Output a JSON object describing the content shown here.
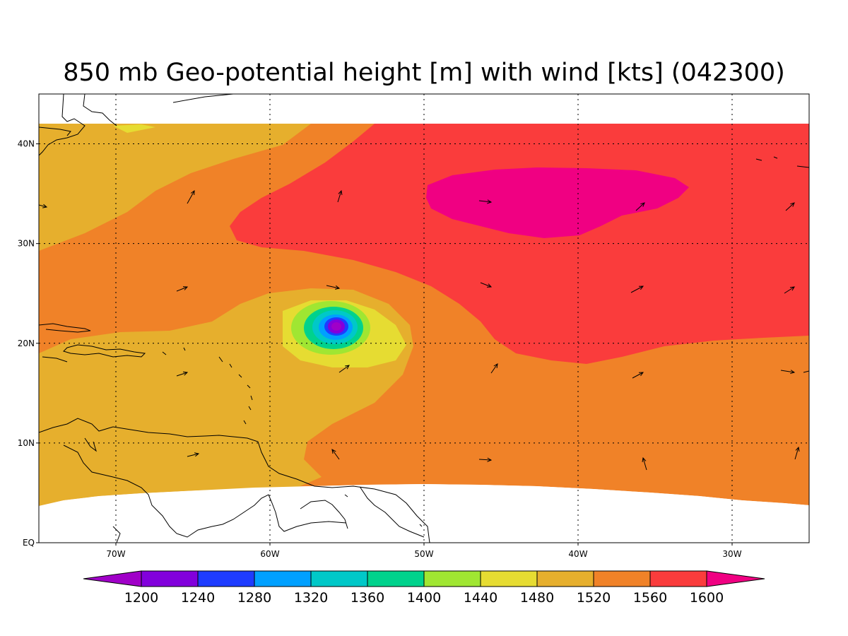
{
  "title": "850 mb Geo-potential height [m] with wind [kts] (042300)",
  "map": {
    "x_ticks": [
      {
        "lon": -70,
        "label": "70W"
      },
      {
        "lon": -60,
        "label": "60W"
      },
      {
        "lon": -50,
        "label": "50W"
      },
      {
        "lon": -40,
        "label": "40W"
      },
      {
        "lon": -30,
        "label": "30W"
      }
    ],
    "y_ticks": [
      {
        "lat": 0,
        "label": "EQ"
      },
      {
        "lat": 10,
        "label": "10N"
      },
      {
        "lat": 20,
        "label": "20N"
      },
      {
        "lat": 30,
        "label": "30N"
      },
      {
        "lat": 40,
        "label": "40N"
      }
    ],
    "lon_range": [
      -75,
      -25
    ],
    "lat_range": [
      0,
      45
    ],
    "data_lat_range": [
      4,
      42
    ]
  },
  "colorbar": {
    "levels": [
      1200,
      1240,
      1280,
      1320,
      1360,
      1400,
      1440,
      1480,
      1520,
      1560,
      1600
    ],
    "labels": [
      "1200",
      "1240",
      "1280",
      "1320",
      "1360",
      "1400",
      "1440",
      "1480",
      "1520",
      "1560",
      "1600"
    ],
    "colors": [
      "#a000c8",
      "#8200dc",
      "#1e3cff",
      "#00a0ff",
      "#00c8c8",
      "#00d28c",
      "#a0e632",
      "#e6dc32",
      "#e6af2d",
      "#f08228",
      "#fa3c3c",
      "#f00082"
    ]
  },
  "chart_data": {
    "type": "heatmap",
    "field": "geopotential height",
    "contour_levels": [
      1200,
      1240,
      1280,
      1320,
      1360,
      1400,
      1440,
      1480,
      1520,
      1560,
      1600
    ],
    "xlim": [
      -75,
      -25
    ],
    "ylim": [
      0,
      45
    ],
    "features": [
      {
        "kind": "low",
        "lon": -55.5,
        "lat": 21.7,
        "min_level": 1200
      },
      {
        "kind": "high",
        "lon": -42,
        "lat": 34,
        "min_level": 1600
      }
    ]
  }
}
